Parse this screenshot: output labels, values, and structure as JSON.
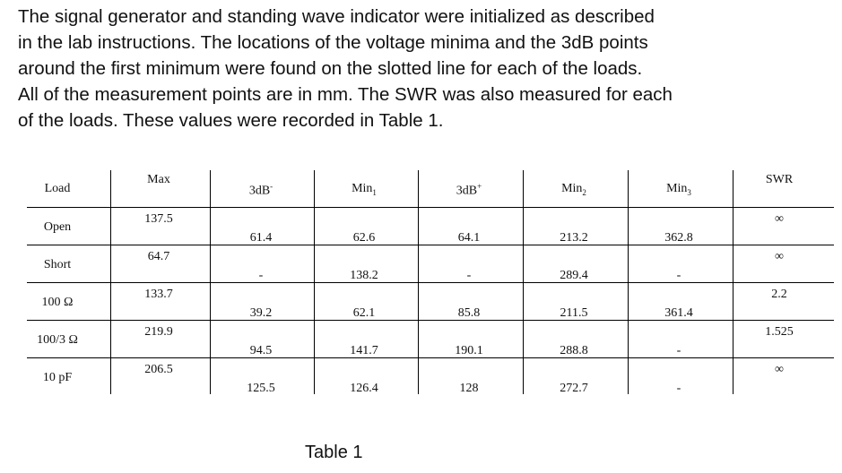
{
  "paragraph": [
    "The signal generator and standing wave indicator  were initialized as described",
    "in the lab instructions. The locations of the voltage minima and the 3dB points",
    "around the first minimum were found on the slotted line for each of the loads.",
    "All of the measurement points are in mm. The SWR was also measured for each",
    "of the loads.  These values were recorded in Table 1."
  ],
  "caption": "Table 1",
  "table": {
    "headers": {
      "load": "Load",
      "max": "Max",
      "db3_minus": "3dB",
      "db3_minus_sup": "-",
      "min1": "Min",
      "min1_sub": "1",
      "db3_plus": "3dB",
      "db3_plus_sup": "+",
      "min2": "Min",
      "min2_sub": "2",
      "min3": "Min",
      "min3_sub": "3",
      "swr": "SWR"
    },
    "rows": [
      {
        "load": "Open",
        "max": "137.5",
        "db3_minus": "61.4",
        "min1": "62.6",
        "db3_plus": "64.1",
        "min2": "213.2",
        "min3": "362.8",
        "swr": "∞"
      },
      {
        "load": "Short",
        "max": "64.7",
        "db3_minus": "-",
        "min1": "138.2",
        "db3_plus": "-",
        "min2": "289.4",
        "min3": "-",
        "swr": "∞"
      },
      {
        "load": "100 Ω",
        "max": "133.7",
        "db3_minus": "39.2",
        "min1": "62.1",
        "db3_plus": "85.8",
        "min2": "211.5",
        "min3": "361.4",
        "swr": "2.2"
      },
      {
        "load": "100/3 Ω",
        "max": "219.9",
        "db3_minus": "94.5",
        "min1": "141.7",
        "db3_plus": "190.1",
        "min2": "288.8",
        "min3": "-",
        "swr": "1.525"
      },
      {
        "load": "10 pF",
        "max": "206.5",
        "db3_minus": "125.5",
        "min1": "126.4",
        "db3_plus": "128",
        "min2": "272.7",
        "min3": "-",
        "swr": "∞"
      }
    ]
  }
}
